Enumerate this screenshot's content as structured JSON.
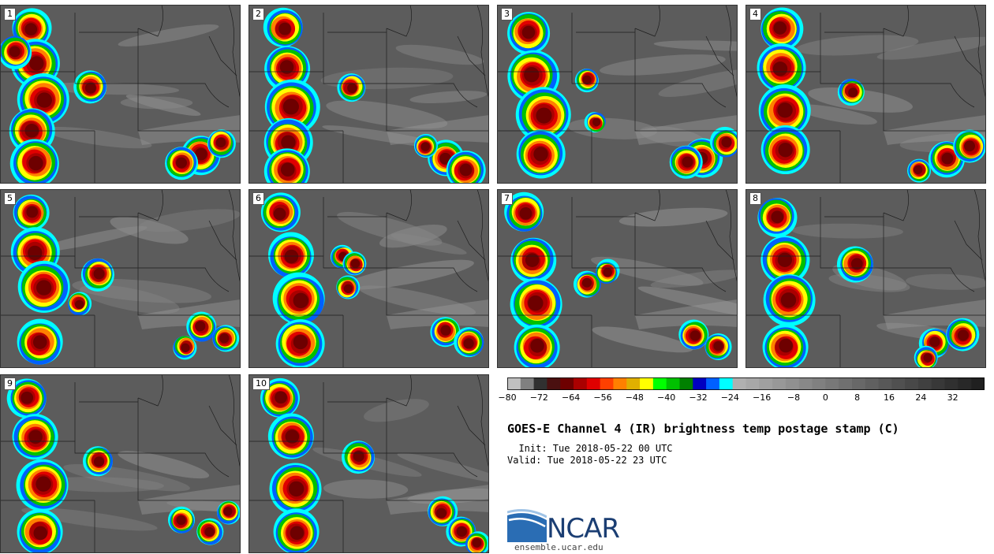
{
  "title": "GOES-E Channel 4 (IR) brightness temp postage stamp (C)",
  "init_line": "  Init: Tue 2018-05-22 00 UTC",
  "valid_line": "Valid: Tue 2018-05-22 23 UTC",
  "panels": [
    "1",
    "2",
    "3",
    "4",
    "5",
    "6",
    "7",
    "8",
    "9",
    "10"
  ],
  "colorbar": {
    "min": -80,
    "max": 40,
    "tick_labels": [
      "−80",
      "−72",
      "−64",
      "−56",
      "−48",
      "−40",
      "−32",
      "−24",
      "−16",
      "−8",
      "0",
      "8",
      "16",
      "24",
      "32"
    ],
    "colors": [
      "#c0c0c0",
      "#808080",
      "#303030",
      "#4a1010",
      "#6e0000",
      "#aa0000",
      "#e00000",
      "#ff4000",
      "#ff8000",
      "#e0b000",
      "#ffff00",
      "#00ff00",
      "#00c000",
      "#008000",
      "#0000c0",
      "#0060ff",
      "#00ffff",
      "#b0b0b0",
      "#a8a8a8",
      "#a0a0a0",
      "#989898",
      "#909090",
      "#888888",
      "#808080",
      "#787878",
      "#707070",
      "#686868",
      "#606060",
      "#585858",
      "#505050",
      "#484848",
      "#404040",
      "#383838",
      "#303030",
      "#282828",
      "#202020"
    ]
  },
  "logo": {
    "text": "NCAR",
    "url": "ensemble.ucar.edu"
  }
}
